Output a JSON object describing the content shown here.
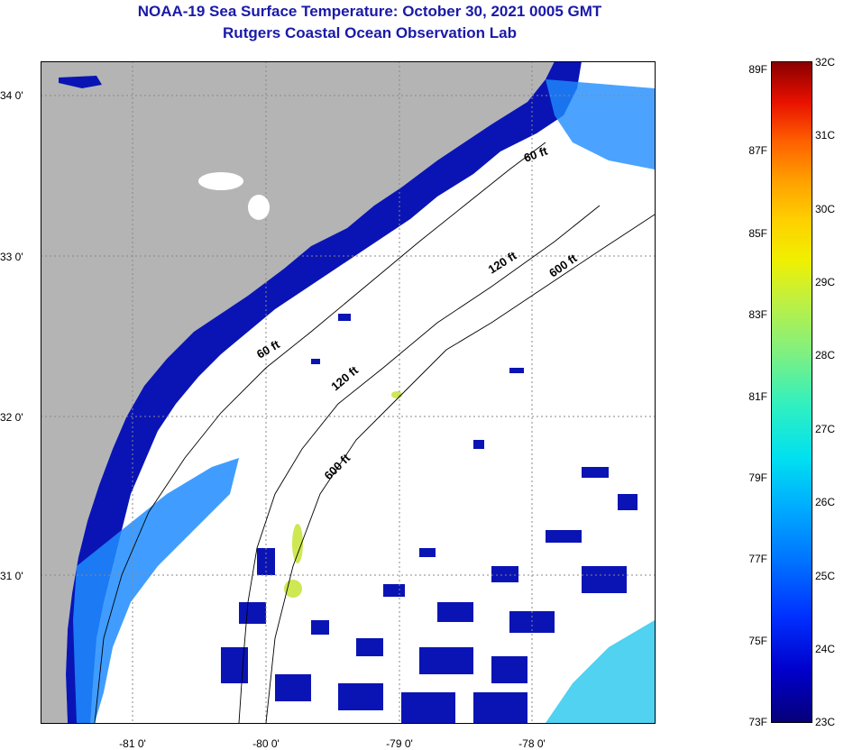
{
  "title": {
    "line1": "NOAA-19 Sea Surface Temperature:  October 30, 2021 0005 GMT",
    "line2": "Rutgers Coastal Ocean Observation Lab"
  },
  "map": {
    "lat_labels": [
      "34 0'",
      "33 0'",
      "32 0'",
      "31 0'"
    ],
    "lon_labels": [
      "-81 0'",
      "-80 0'",
      "-79 0'",
      "-78 0'"
    ],
    "contours": [
      "60 ft",
      "120 ft",
      "600 ft",
      "60 ft",
      "120 ft",
      "600 ft"
    ],
    "colors": {
      "land": "#b4b4b4",
      "cloud": "#ffffff",
      "cold_water": "#0a14b4",
      "mid_water": "#1e8cff",
      "warm_water": "#50d2f0"
    }
  },
  "colorbar": {
    "fahrenheit": [
      "89F",
      "87F",
      "85F",
      "83F",
      "81F",
      "79F",
      "77F",
      "75F",
      "73F"
    ],
    "celsius": [
      "32C",
      "31C",
      "30C",
      "29C",
      "28C",
      "27C",
      "26C",
      "25C",
      "24C",
      "23C"
    ],
    "range_f": [
      73,
      89
    ],
    "range_c": [
      23,
      32
    ]
  }
}
